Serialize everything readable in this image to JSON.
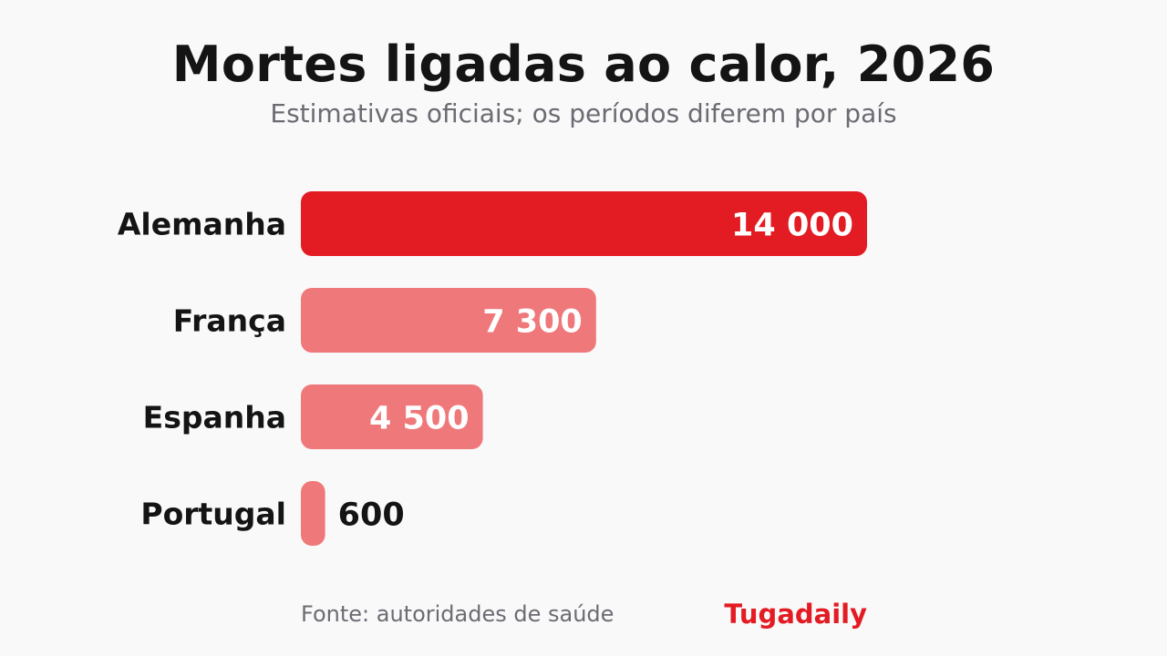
{
  "chart_data": {
    "type": "bar",
    "orientation": "horizontal",
    "title": "Mortes ligadas ao calor, 2026",
    "subtitle": "Estimativas oficiais; os períodos diferem por país",
    "categories": [
      "Alemanha",
      "França",
      "Espanha",
      "Portugal"
    ],
    "values": [
      14000,
      7300,
      4500,
      600
    ],
    "value_labels": [
      "14 000",
      "7 300",
      "4 500",
      "600"
    ],
    "highlight_index": 0,
    "xlim": [
      0,
      14000
    ],
    "grid": false,
    "legend": "none"
  },
  "footer": {
    "source": "Fonte: autoridades de saúde",
    "brand": "Tugadaily"
  },
  "colors": {
    "highlight": "#e31b23",
    "default": "#ef787b",
    "label_inside": "#ffffff",
    "label_outside": "#141414",
    "brand": "#e31b23"
  }
}
